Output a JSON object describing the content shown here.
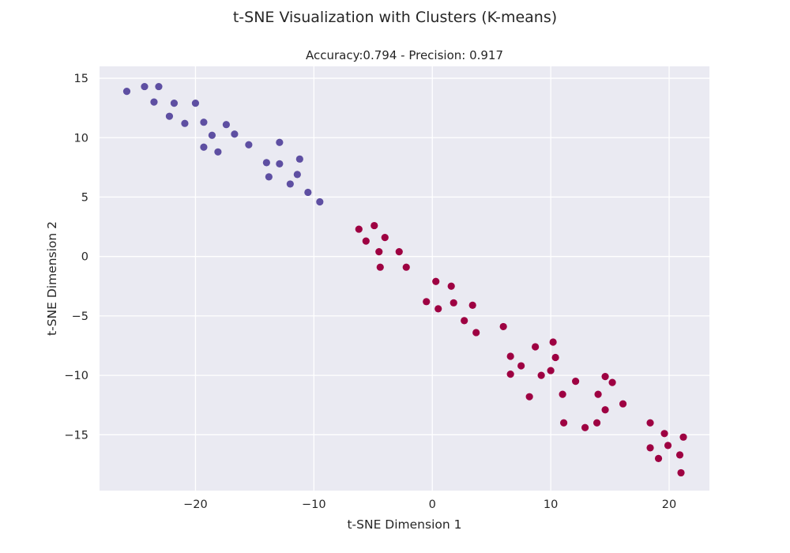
{
  "figure": {
    "title": "t-SNE Visualization with Clusters (K-means)"
  },
  "chart_data": {
    "type": "scatter",
    "title": "Accuracy:0.794 - Precision: 0.917",
    "xlabel": "t-SNE Dimension 1",
    "ylabel": "t-SNE Dimension 2",
    "xlim": [
      -28.1,
      23.4
    ],
    "ylim": [
      -19.7,
      16.0
    ],
    "xticks": [
      -20,
      -10,
      0,
      10,
      20
    ],
    "yticks": [
      15,
      10,
      5,
      0,
      -5,
      -10,
      -15
    ],
    "xtick_labels": [
      "−20",
      "−10",
      "0",
      "10",
      "20"
    ],
    "ytick_labels": [
      "15",
      "10",
      "5",
      "0",
      "−5",
      "−10",
      "−15"
    ],
    "grid": true,
    "background": "#eaeaf2",
    "series": [
      {
        "color": "#5e4fa2",
        "x": [
          -25.8,
          -24.3,
          -23.1,
          -23.5,
          -21.8,
          -22.2,
          -20.0,
          -20.9,
          -19.3,
          -18.6,
          -17.4,
          -19.3,
          -18.1,
          -16.7,
          -15.5,
          -12.9,
          -11.2,
          -14.0,
          -12.9,
          -11.4,
          -13.8,
          -12.0,
          -10.5,
          -9.5
        ],
        "y": [
          13.9,
          14.3,
          14.3,
          13.0,
          12.9,
          11.8,
          12.9,
          11.2,
          11.3,
          10.2,
          11.1,
          9.2,
          8.8,
          10.3,
          9.4,
          9.6,
          8.2,
          7.9,
          7.8,
          6.9,
          6.7,
          6.1,
          5.4,
          4.6
        ]
      },
      {
        "color": "#9e0142",
        "x": [
          -6.2,
          -4.9,
          -5.6,
          -4.0,
          -4.5,
          -2.8,
          -4.4,
          -2.2,
          0.3,
          1.6,
          -0.5,
          1.8,
          0.5,
          3.4,
          2.7,
          3.7,
          6.0,
          10.2,
          8.7,
          6.6,
          10.4,
          7.5,
          6.6,
          10.0,
          9.2,
          14.6,
          12.1,
          15.2,
          8.2,
          11.0,
          14.0,
          14.6,
          16.1,
          11.1,
          13.9,
          12.9,
          18.4,
          19.6,
          21.2,
          18.4,
          19.9,
          20.9,
          19.1,
          21.0
        ],
        "y": [
          2.3,
          2.6,
          1.3,
          1.6,
          0.4,
          0.4,
          -0.9,
          -0.9,
          -2.1,
          -2.5,
          -3.8,
          -3.9,
          -4.4,
          -4.1,
          -5.4,
          -6.4,
          -5.9,
          -7.2,
          -7.6,
          -8.4,
          -8.5,
          -9.2,
          -9.9,
          -9.6,
          -10.0,
          -10.1,
          -10.5,
          -10.6,
          -11.8,
          -11.6,
          -11.6,
          -12.9,
          -12.4,
          -14.0,
          -14.0,
          -14.4,
          -14.0,
          -14.9,
          -15.2,
          -16.1,
          -15.9,
          -16.7,
          -17.0,
          -18.2
        ]
      }
    ]
  }
}
